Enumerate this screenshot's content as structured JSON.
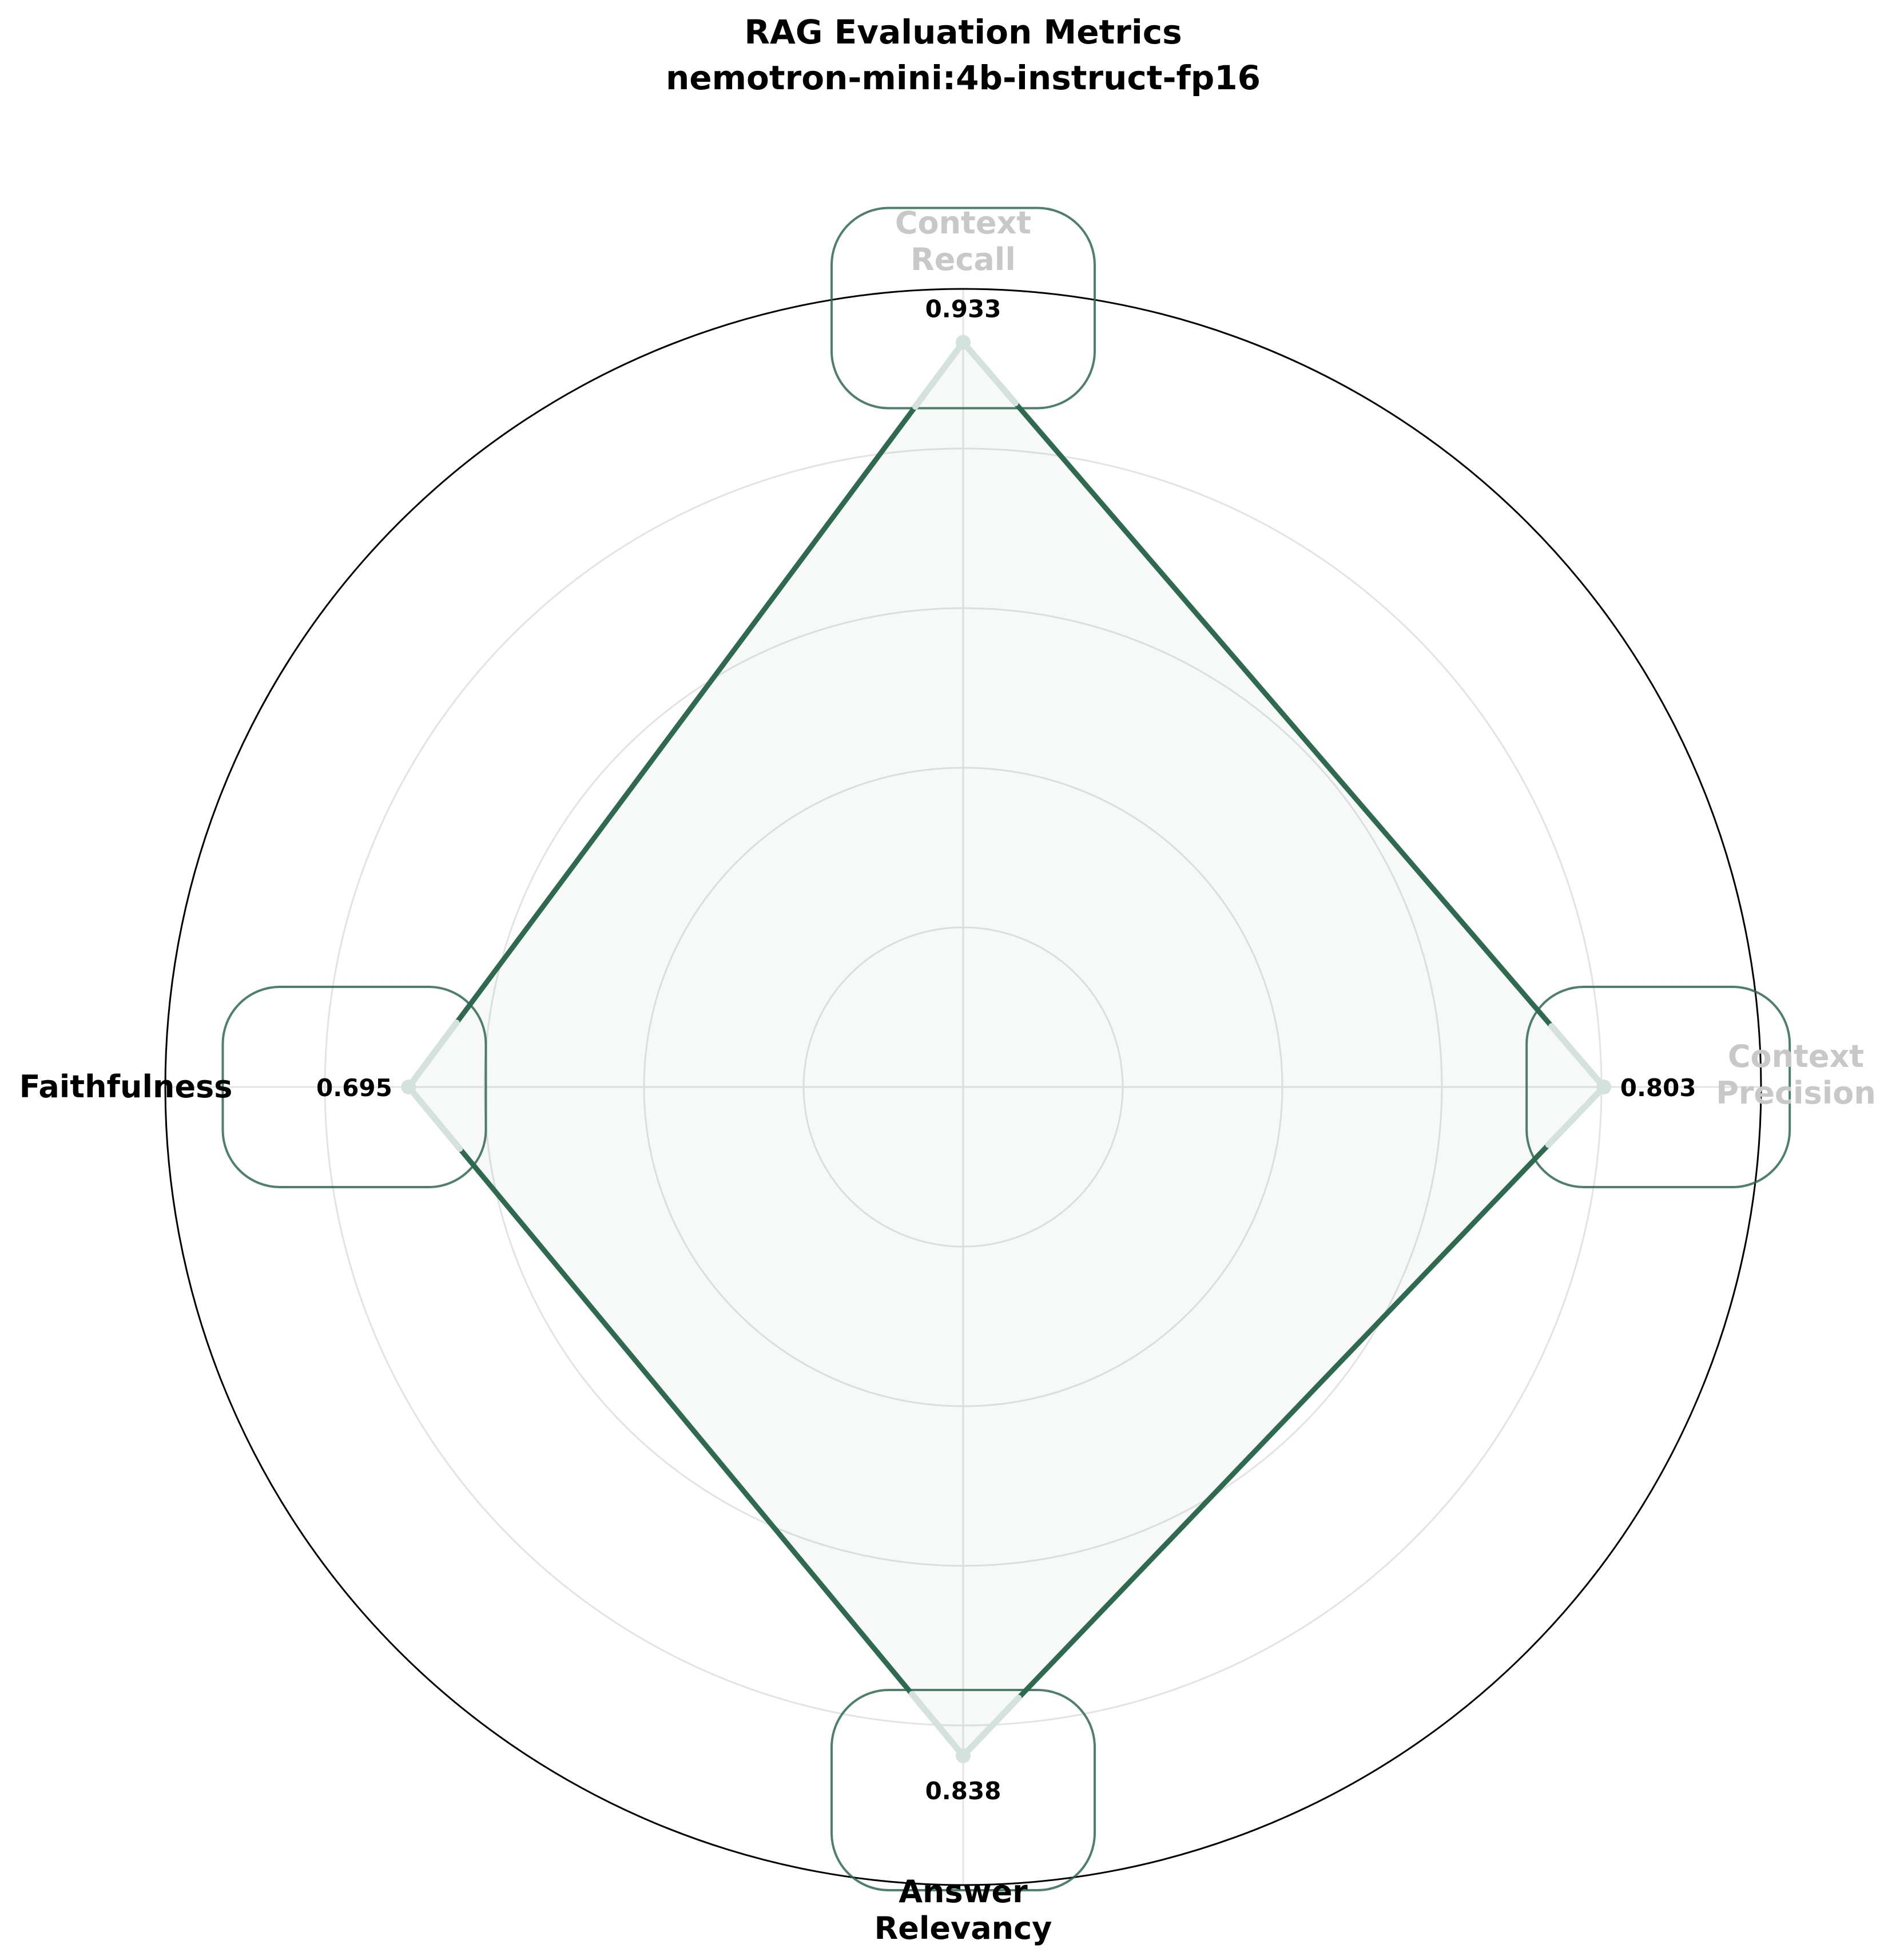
{
  "chart_data": {
    "type": "radar",
    "title": "RAG Evaluation Metrics",
    "subtitle": "nemotron-mini:4b-instruct-fp16",
    "categories": [
      "Context Recall",
      "Context Precision",
      "Answer Relevancy",
      "Faithfulness"
    ],
    "category_label_lines": [
      [
        "Context",
        "Recall"
      ],
      [
        "Context",
        "Precision"
      ],
      [
        "Answer",
        "Relevancy"
      ],
      [
        "Faithfulness"
      ]
    ],
    "values": [
      0.933,
      0.803,
      0.838,
      0.695
    ],
    "value_labels": [
      "0.933",
      "0.803",
      "0.838",
      "0.695"
    ],
    "rlim": [
      0,
      1
    ],
    "radial_gridlines": [
      0.2,
      0.4,
      0.6,
      0.8
    ],
    "grid": true,
    "colors": {
      "line": "#2d6a4f",
      "fill": "#2d6a4f",
      "marker": "#d3e2dc",
      "grid": "#e3e3e3",
      "frame": "#000000",
      "faded_label": "#c8c8c8"
    }
  }
}
